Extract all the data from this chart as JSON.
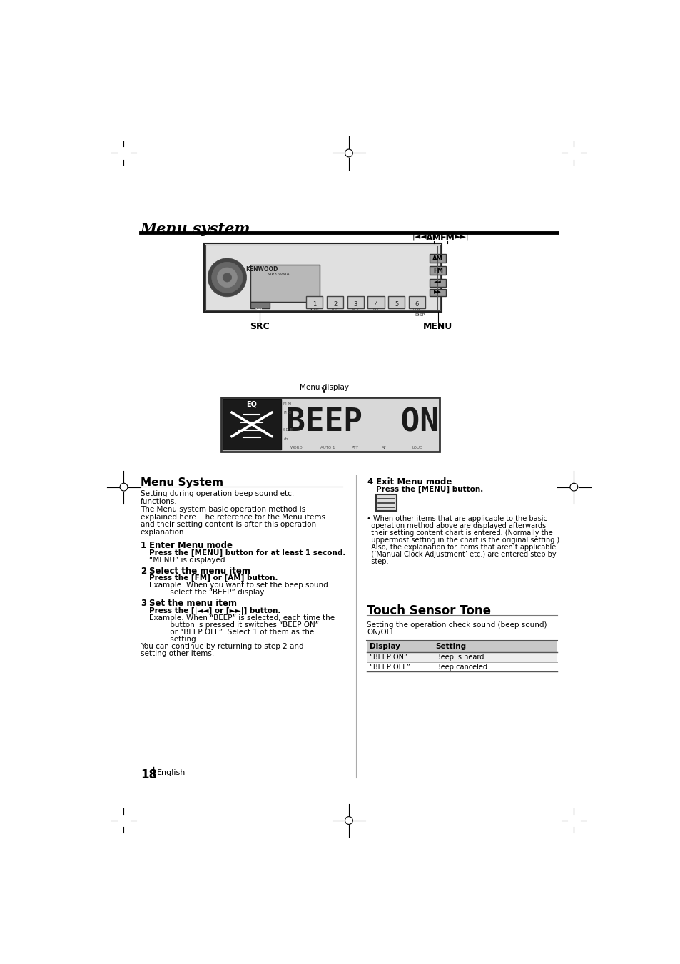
{
  "page_bg": "#ffffff",
  "title": "Menu system",
  "section1_title": "Menu System",
  "step1_num": "1",
  "step1_head": "Enter Menu mode",
  "step1_bold": "Press the [MENU] button for at least 1 second.",
  "step1_body": "“MENU” is displayed.",
  "step2_num": "2",
  "step2_head": "Select the menu item",
  "step2_bold": "Press the [FM] or [AM] button.",
  "step3_num": "3",
  "step3_head": "Set the menu item",
  "step3_bold": "Press the [|◄◄] or [►►|] button.",
  "step4_num": "4",
  "step4_head": "Exit Menu mode",
  "step4_bold": "Press the [MENU] button.",
  "section2_title": "Touch Sensor Tone",
  "section2_intro": "Setting the operation check sound (beep sound)\nON/OFF.",
  "table_header": [
    "Display",
    "Setting"
  ],
  "table_rows": [
    [
      "“BEEP ON”",
      "Beep is heard."
    ],
    [
      "“BEEP OFF”",
      "Beep canceled."
    ]
  ],
  "page_number": "18",
  "menu_display_label": "Menu display",
  "src_label": "SRC",
  "menu_label": "MENU",
  "am_label": "AM",
  "fm_label": "FM"
}
